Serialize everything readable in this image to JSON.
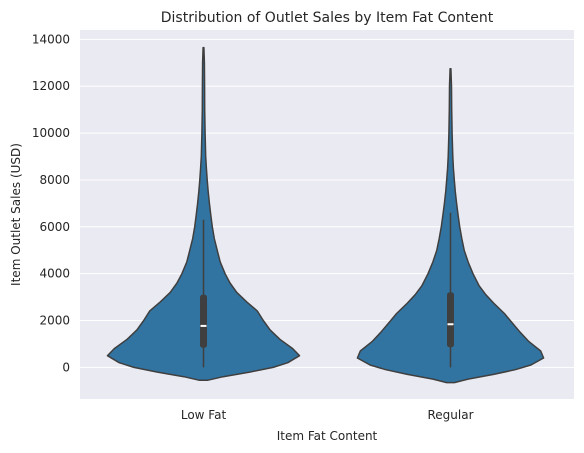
{
  "chart_data": {
    "type": "violin",
    "title": "Distribution of Outlet Sales by Item Fat Content",
    "xlabel": "Item Fat Content",
    "ylabel": "Item Outlet Sales (USD)",
    "categories": [
      "Low Fat",
      "Regular"
    ],
    "ylim": [
      -1350,
      14400
    ],
    "yticks": [
      0,
      2000,
      4000,
      6000,
      8000,
      10000,
      12000,
      14000
    ],
    "grid": true,
    "color": "#3274a1",
    "background": "#eaeaf2",
    "violins": [
      {
        "category": "Low Fat",
        "min": 33,
        "q1": 840,
        "median": 1770,
        "q3": 3100,
        "max": 13600,
        "whisker_low": 0,
        "whisker_high": 6300,
        "profile": [
          [
            -550,
            0.04
          ],
          [
            -400,
            0.2
          ],
          [
            -200,
            0.47
          ],
          [
            0,
            0.71
          ],
          [
            200,
            0.86
          ],
          [
            500,
            0.98
          ],
          [
            800,
            0.91
          ],
          [
            1200,
            0.78
          ],
          [
            1600,
            0.68
          ],
          [
            2000,
            0.61
          ],
          [
            2400,
            0.55
          ],
          [
            2800,
            0.44
          ],
          [
            3200,
            0.34
          ],
          [
            3600,
            0.27
          ],
          [
            4000,
            0.22
          ],
          [
            4500,
            0.17
          ],
          [
            5000,
            0.14
          ],
          [
            5500,
            0.11
          ],
          [
            6000,
            0.09
          ],
          [
            6500,
            0.075
          ],
          [
            7000,
            0.06
          ],
          [
            7500,
            0.048
          ],
          [
            8000,
            0.038
          ],
          [
            8500,
            0.03
          ],
          [
            9000,
            0.022
          ],
          [
            10000,
            0.016
          ],
          [
            11000,
            0.012
          ],
          [
            12000,
            0.011
          ],
          [
            13000,
            0.009
          ],
          [
            13650,
            0.004
          ]
        ]
      },
      {
        "category": "Regular",
        "min": 33,
        "q1": 860,
        "median": 1840,
        "q3": 3200,
        "max": 12700,
        "whisker_low": 0,
        "whisker_high": 6600,
        "profile": [
          [
            -650,
            0.04
          ],
          [
            -500,
            0.18
          ],
          [
            -300,
            0.44
          ],
          [
            -100,
            0.66
          ],
          [
            100,
            0.82
          ],
          [
            400,
            0.95
          ],
          [
            700,
            0.92
          ],
          [
            1100,
            0.8
          ],
          [
            1500,
            0.71
          ],
          [
            1900,
            0.63
          ],
          [
            2300,
            0.55
          ],
          [
            2700,
            0.45
          ],
          [
            3100,
            0.36
          ],
          [
            3500,
            0.29
          ],
          [
            4000,
            0.23
          ],
          [
            4500,
            0.18
          ],
          [
            5000,
            0.14
          ],
          [
            5500,
            0.115
          ],
          [
            6000,
            0.094
          ],
          [
            6500,
            0.078
          ],
          [
            7000,
            0.062
          ],
          [
            7500,
            0.049
          ],
          [
            8000,
            0.039
          ],
          [
            8500,
            0.03
          ],
          [
            9000,
            0.023
          ],
          [
            10000,
            0.016
          ],
          [
            11000,
            0.012
          ],
          [
            12000,
            0.01
          ],
          [
            12750,
            0.004
          ]
        ]
      }
    ]
  }
}
